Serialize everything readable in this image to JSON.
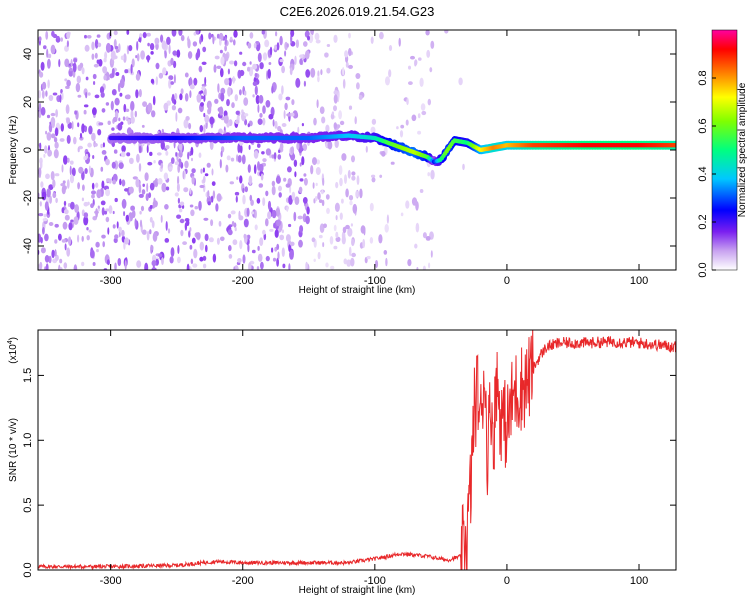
{
  "title": "C2E6.2026.019.21.54.G23",
  "colors": {
    "snr_line": "#e8282a",
    "colormap": [
      "#ffffff",
      "#c8a2f0",
      "#7a1ff0",
      "#0000ff",
      "#00c8ff",
      "#00ff80",
      "#80ff00",
      "#ffff00",
      "#ff8000",
      "#ff0000",
      "#ff00a0"
    ]
  },
  "chart_data": [
    {
      "type": "heatmap",
      "title": "C2E6.2026.019.21.54.G23",
      "xlabel": "Height of straight line (km)",
      "ylabel": "Frequency (Hz)",
      "xlim": [
        -355,
        128
      ],
      "ylim": [
        -50,
        50
      ],
      "x_ticks": [
        -300,
        -200,
        -100,
        0,
        100
      ],
      "y_ticks": [
        -40,
        -20,
        0,
        20,
        40
      ],
      "colorbar": {
        "label": "Normalized spectral amplitude",
        "range": [
          0,
          1
        ],
        "ticks": [
          "0.0",
          "0.2",
          "0.4",
          "0.6",
          "0.8"
        ]
      },
      "signal_ridge": {
        "x": [
          -300,
          -250,
          -200,
          -150,
          -120,
          -100,
          -90,
          -80,
          -70,
          -60,
          -55,
          -50,
          -45,
          -40,
          -30,
          -20,
          -10,
          0,
          20,
          60,
          100,
          128
        ],
        "frequency": [
          5,
          5,
          5,
          5,
          6,
          5,
          3,
          1,
          -1,
          -3,
          -5,
          -4,
          0,
          4,
          3,
          0,
          1,
          2,
          2,
          2,
          2,
          2
        ],
        "amplitude": [
          0.25,
          0.3,
          0.35,
          0.35,
          0.4,
          0.45,
          0.55,
          0.6,
          0.65,
          0.55,
          0.3,
          0.5,
          0.6,
          0.55,
          0.5,
          0.7,
          0.8,
          0.75,
          0.85,
          0.9,
          0.9,
          0.85
        ]
      }
    },
    {
      "type": "line",
      "xlabel": "Height of straight line (km)",
      "ylabel": "SNR (10 * v/v)",
      "y_scale_label": "(x10",
      "y_scale_exponent": "4",
      "xlim": [
        -355,
        128
      ],
      "ylim": [
        0,
        1.85
      ],
      "x_ticks": [
        -300,
        -200,
        -100,
        0,
        100
      ],
      "y_ticks": [
        "0.0",
        "0.5",
        "1.0",
        "1.5"
      ],
      "series": [
        {
          "x": [
            -355,
            -300,
            -250,
            -220,
            -200,
            -150,
            -120,
            -100,
            -80,
            -60,
            -45,
            -35,
            -30,
            -27,
            -25,
            -22,
            -20,
            -17,
            -15,
            -12,
            -10,
            -8,
            -5,
            0,
            5,
            10,
            15,
            20,
            25,
            30,
            40,
            60,
            80,
            100,
            128
          ],
          "y": [
            0.02,
            0.02,
            0.03,
            0.06,
            0.05,
            0.05,
            0.05,
            0.08,
            0.12,
            0.1,
            0.07,
            0.1,
            0.3,
            0.7,
            1.2,
            1.4,
            1.1,
            1.6,
            0.9,
            1.3,
            1.0,
            1.5,
            1.2,
            1.1,
            1.35,
            1.4,
            1.45,
            1.55,
            1.65,
            1.72,
            1.75,
            1.75,
            1.76,
            1.75,
            1.72
          ]
        }
      ]
    }
  ]
}
